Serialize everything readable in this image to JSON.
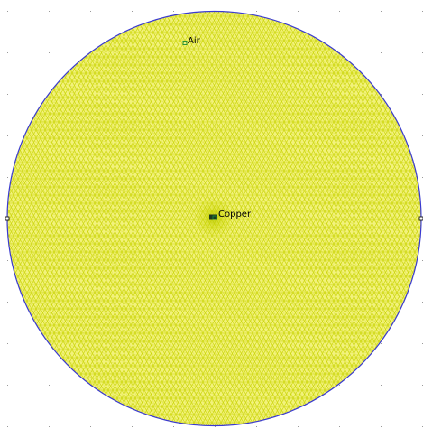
{
  "block_labels": [
    "Air",
    "Copper"
  ]
}
